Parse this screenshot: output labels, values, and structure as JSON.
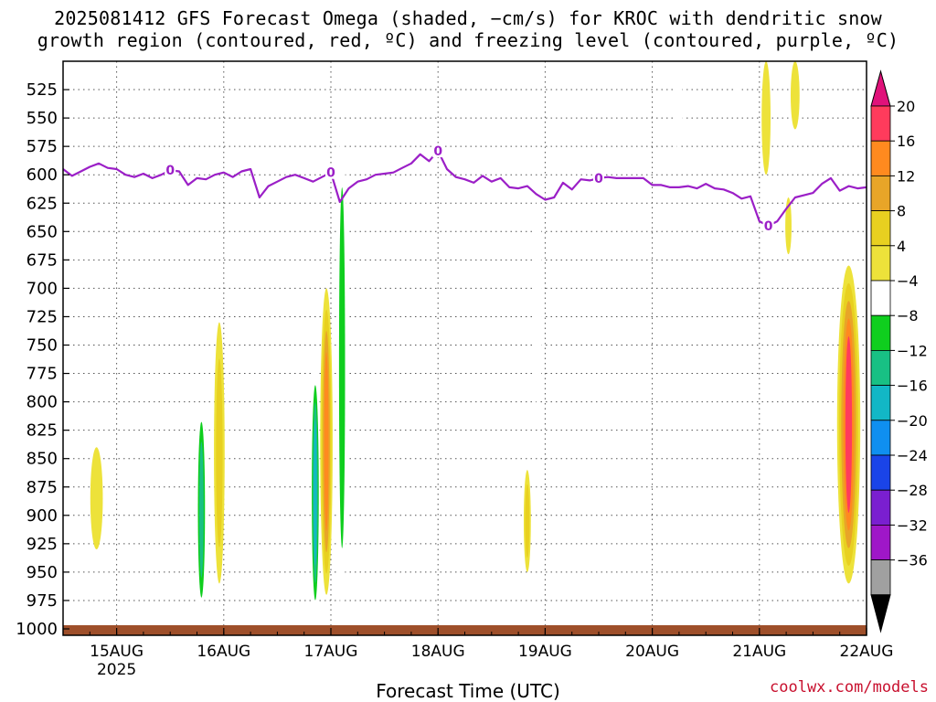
{
  "chart_data": {
    "type": "heatmap",
    "title_line1": "2025081412 GFS Forecast Omega (shaded, −cm/s) for KROC with dendritic snow",
    "title_line2": "growth region (contoured, red, ºC) and freezing level (contoured, purple, ºC)",
    "xlabel": "Forecast Time (UTC)",
    "credit": "coolwx.com/models",
    "x_ticks": [
      {
        "label": "15AUG",
        "sub": "2025",
        "hour": 12
      },
      {
        "label": "16AUG",
        "sub": "",
        "hour": 36
      },
      {
        "label": "17AUG",
        "sub": "",
        "hour": 60
      },
      {
        "label": "18AUG",
        "sub": "",
        "hour": 84
      },
      {
        "label": "19AUG",
        "sub": "",
        "hour": 108
      },
      {
        "label": "20AUG",
        "sub": "",
        "hour": 132
      },
      {
        "label": "21AUG",
        "sub": "",
        "hour": 156
      },
      {
        "label": "22AUG",
        "sub": "",
        "hour": 180
      }
    ],
    "x_range_hours": [
      0,
      180
    ],
    "y_ticks": [
      525,
      550,
      575,
      600,
      625,
      650,
      675,
      700,
      725,
      750,
      775,
      800,
      825,
      850,
      875,
      900,
      925,
      950,
      975,
      1000
    ],
    "y_range_hPa": [
      500,
      1000
    ],
    "grid": true,
    "colorbar": {
      "labels": [
        "20",
        "16",
        "12",
        "8",
        "4",
        "−4",
        "−8",
        "−12",
        "−16",
        "−20",
        "−24",
        "−28",
        "−32",
        "−36"
      ],
      "colors": [
        "#ff3b5c",
        "#ff8a1f",
        "#e8a528",
        "#e8d020",
        "#ede23a",
        "#ffffff",
        "#0fce1e",
        "#18c084",
        "#12b7c6",
        "#0f8ff0",
        "#1a44e8",
        "#7a1fd0",
        "#9f17c8",
        "#a0a0a0"
      ],
      "top_color": "#e0127a",
      "bottom_color": "#000000"
    },
    "freezing_level": {
      "color": "#9b1fc7",
      "label": "0",
      "hours": [
        0,
        2,
        4,
        6,
        8,
        10,
        12,
        14,
        16,
        18,
        20,
        22,
        24,
        26,
        28,
        30,
        32,
        34,
        36,
        38,
        40,
        42,
        44,
        46,
        48,
        50,
        52,
        54,
        56,
        58,
        60,
        62,
        64,
        66,
        68,
        70,
        72,
        74,
        76,
        78,
        80,
        82,
        84,
        86,
        88,
        90,
        92,
        94,
        96,
        98,
        100,
        102,
        104,
        106,
        108,
        110,
        112,
        114,
        116,
        118,
        120,
        122,
        124,
        126,
        128,
        130,
        132,
        134,
        136,
        138,
        140,
        142,
        144,
        146,
        148,
        150,
        152,
        154,
        156,
        158,
        160,
        162,
        164,
        166,
        168,
        170,
        172,
        174,
        176,
        178,
        180
      ],
      "pressure_hPa": [
        595,
        601,
        597,
        593,
        590,
        594,
        595,
        600,
        602,
        599,
        603,
        600,
        596,
        597,
        609,
        603,
        604,
        600,
        598,
        602,
        597,
        595,
        620,
        610,
        606,
        602,
        600,
        603,
        606,
        602,
        598,
        624,
        612,
        606,
        604,
        600,
        599,
        598,
        594,
        590,
        582,
        588,
        579,
        595,
        602,
        604,
        607,
        601,
        606,
        603,
        611,
        612,
        610,
        617,
        622,
        620,
        607,
        613,
        604,
        605,
        603,
        602,
        603,
        603,
        603,
        603,
        609,
        609,
        611,
        611,
        610,
        612,
        608,
        612,
        613,
        616,
        621,
        619,
        641,
        645,
        641,
        630,
        620,
        618,
        616,
        608,
        603,
        614,
        610,
        612,
        611
      ]
    },
    "freezing_labels_hours": [
      24,
      60,
      84,
      120,
      158
    ],
    "ground_color": "#9e4f2a",
    "omega_areas": [
      {
        "name": "snowband-15aug-yellow",
        "hour": 7.5,
        "p_top": 840,
        "p_bot": 930,
        "width_h": 2.8,
        "levels": [
          4
        ]
      },
      {
        "name": "cell-16aug-core",
        "hour": 31,
        "p_top": 800,
        "p_bot": 990,
        "width_h": 2.2,
        "levels": [
          -4,
          -8,
          -12
        ]
      },
      {
        "name": "cell-16aug-east",
        "hour": 35,
        "p_top": 730,
        "p_bot": 960,
        "width_h": 2.4,
        "levels": [
          4,
          8
        ]
      },
      {
        "name": "cell-17aug-core",
        "hour": 56.5,
        "p_top": 770,
        "p_bot": 990,
        "width_h": 2.0,
        "levels": [
          -4,
          -8,
          -12,
          -16
        ]
      },
      {
        "name": "cell-17aug-warm",
        "hour": 59,
        "p_top": 700,
        "p_bot": 970,
        "width_h": 2.8,
        "levels": [
          4,
          8,
          12,
          16
        ]
      },
      {
        "name": "cell-17aug-east",
        "hour": 62.5,
        "p_top": 550,
        "p_bot": 990,
        "width_h": 2.2,
        "levels": [
          -4,
          -8
        ]
      },
      {
        "name": "updraft-19aug",
        "hour": 106.5,
        "p_top": 610,
        "p_bot": 820,
        "width_h": 1.6,
        "levels": [
          -4
        ]
      },
      {
        "name": "cell-19aug-warm",
        "hour": 104,
        "p_top": 860,
        "p_bot": 950,
        "width_h": 1.6,
        "levels": [
          4,
          8
        ]
      },
      {
        "name": "upper-20aug",
        "hour": 138,
        "p_top": 500,
        "p_bot": 585,
        "width_h": 1.6,
        "levels": [
          -4
        ]
      },
      {
        "name": "upper-21aug",
        "hour": 151.5,
        "p_top": 500,
        "p_bot": 540,
        "width_h": 1.2,
        "levels": [
          -4
        ]
      },
      {
        "name": "upper-21aug-yellow",
        "hour": 157.5,
        "p_top": 500,
        "p_bot": 600,
        "width_h": 2.0,
        "levels": [
          4
        ]
      },
      {
        "name": "upper-21aug-2",
        "hour": 164,
        "p_top": 500,
        "p_bot": 560,
        "width_h": 2.0,
        "levels": [
          4
        ]
      },
      {
        "name": "mid-21aug",
        "hour": 162.5,
        "p_top": 620,
        "p_bot": 670,
        "width_h": 1.4,
        "levels": [
          4
        ]
      },
      {
        "name": "cell-22aug",
        "hour": 176,
        "p_top": 680,
        "p_bot": 960,
        "width_h": 5.2,
        "levels": [
          4,
          8,
          12,
          16,
          20
        ]
      }
    ]
  }
}
